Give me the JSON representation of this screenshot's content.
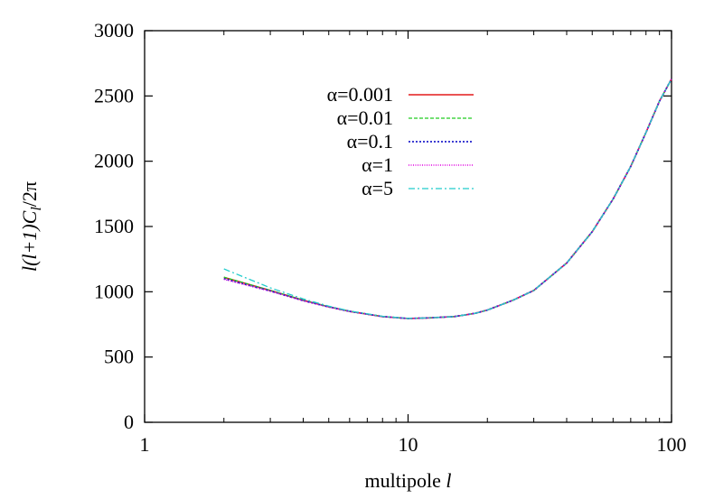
{
  "chart_data": {
    "type": "line",
    "title": "",
    "xlabel": "multipole l",
    "xlabel_parts": {
      "text": "multipole ",
      "var": "l"
    },
    "ylabel": "l(l+1)C_l/2π",
    "ylabel_parts": {
      "a": "l(l+1)C",
      "sub": "l",
      "b": "/2π"
    },
    "x_scale": "log",
    "xlim": [
      1,
      100
    ],
    "ylim": [
      0,
      3000
    ],
    "x_ticks": [
      1,
      10,
      100
    ],
    "x_tick_labels": [
      "1",
      "10",
      "100"
    ],
    "y_ticks": [
      0,
      500,
      1000,
      1500,
      2000,
      2500,
      3000
    ],
    "y_tick_labels": [
      "0",
      "500",
      "1000",
      "1500",
      "2000",
      "2500",
      "3000"
    ],
    "grid": false,
    "legend_position": "top-center",
    "x": [
      2,
      3,
      4,
      5,
      6,
      8,
      10,
      12,
      15,
      18,
      20,
      25,
      30,
      40,
      50,
      60,
      70,
      80,
      90,
      100
    ],
    "series": [
      {
        "name": "α=0.001",
        "color": "#e41a1c",
        "dash": "solid",
        "values": [
          1110,
          1010,
          935,
          885,
          850,
          810,
          795,
          800,
          810,
          835,
          860,
          935,
          1010,
          1220,
          1460,
          1710,
          1960,
          2220,
          2460,
          2630
        ]
      },
      {
        "name": "α=0.01",
        "color": "#22cc22",
        "dash": "dashed",
        "values": [
          1112,
          1011,
          936,
          885,
          850,
          810,
          795,
          800,
          810,
          835,
          860,
          935,
          1010,
          1220,
          1460,
          1710,
          1960,
          2220,
          2460,
          2630
        ]
      },
      {
        "name": "α=0.1",
        "color": "#2222cc",
        "dash": "dotted",
        "values": [
          1100,
          1006,
          932,
          884,
          850,
          810,
          795,
          800,
          810,
          835,
          860,
          935,
          1010,
          1220,
          1460,
          1710,
          1960,
          2220,
          2460,
          2630
        ]
      },
      {
        "name": "α=1",
        "color": "#e000e0",
        "dash": "fine-dotted",
        "values": [
          1095,
          1004,
          931,
          883,
          849,
          810,
          795,
          800,
          810,
          835,
          860,
          935,
          1010,
          1220,
          1460,
          1710,
          1960,
          2220,
          2460,
          2630
        ]
      },
      {
        "name": "α=5",
        "color": "#22cccc",
        "dash": "dash-dot",
        "values": [
          1175,
          1030,
          945,
          890,
          853,
          812,
          796,
          800,
          810,
          835,
          860,
          935,
          1010,
          1220,
          1460,
          1710,
          1960,
          2220,
          2460,
          2630
        ]
      }
    ]
  }
}
